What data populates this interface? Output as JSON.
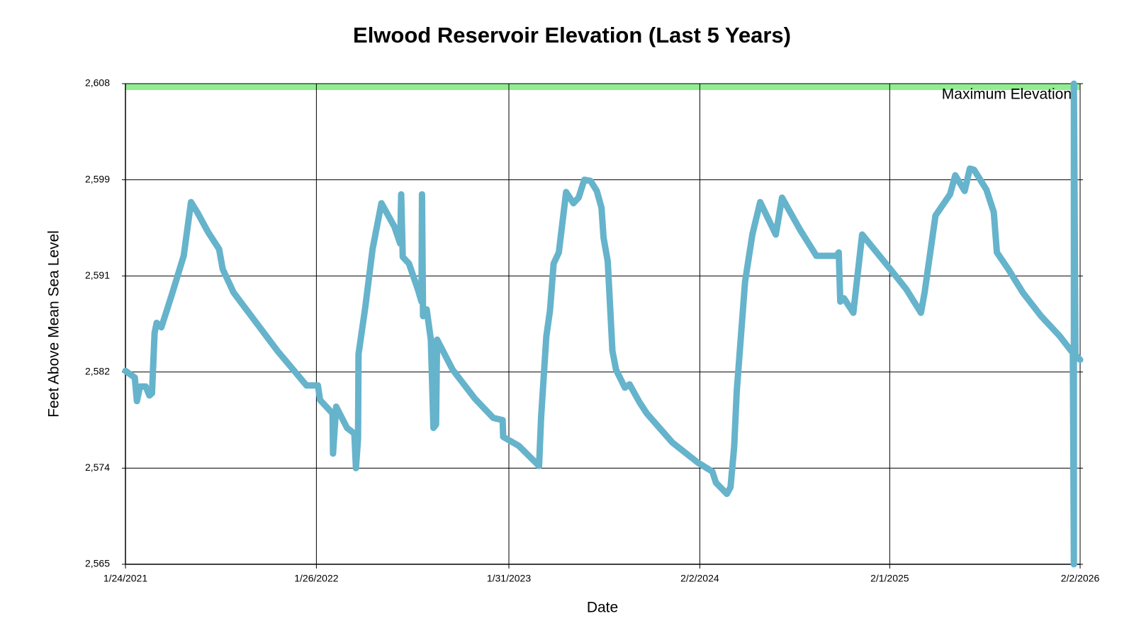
{
  "chart_data": {
    "type": "line",
    "title": "Elwood Reservoir Elevation (Last 5 Years)",
    "x_label": "Date",
    "y_label": "Feet Above Mean Sea Level",
    "x": [
      "2021-01-24",
      "2021-02-11",
      "2021-02-15",
      "2021-02-21",
      "2021-03-04",
      "2021-03-11",
      "2021-03-16",
      "2021-03-21",
      "2021-03-25",
      "2021-04-03",
      "2021-04-23",
      "2021-05-16",
      "2021-05-30",
      "2021-06-11",
      "2021-07-02",
      "2021-07-23",
      "2021-07-30",
      "2021-08-20",
      "2021-09-10",
      "2021-10-01",
      "2021-11-12",
      "2022-01-07",
      "2022-01-29",
      "2022-02-02",
      "2022-02-26",
      "2022-02-27",
      "2022-03-05",
      "2022-03-26",
      "2022-04-09",
      "2022-04-12",
      "2022-04-16",
      "2022-04-17",
      "2022-04-30",
      "2022-05-14",
      "2022-05-31",
      "2022-06-25",
      "2022-07-06",
      "2022-07-08",
      "2022-07-11",
      "2022-07-23",
      "2022-08-09",
      "2022-08-16",
      "2022-08-17",
      "2022-08-19",
      "2022-08-26",
      "2022-09-03",
      "2022-09-08",
      "2022-09-13",
      "2022-09-15",
      "2022-10-15",
      "2022-11-27",
      "2023-01-01",
      "2023-01-19",
      "2023-01-20",
      "2023-02-19",
      "2023-03-30",
      "2023-04-03",
      "2023-04-13",
      "2023-04-20",
      "2023-04-27",
      "2023-05-07",
      "2023-05-21",
      "2023-06-04",
      "2023-06-14",
      "2023-06-25",
      "2023-07-07",
      "2023-07-19",
      "2023-07-28",
      "2023-08-01",
      "2023-08-09",
      "2023-08-18",
      "2023-08-25",
      "2023-09-11",
      "2023-09-20",
      "2023-10-09",
      "2023-10-23",
      "2023-12-11",
      "2024-01-29",
      "2024-02-26",
      "2024-03-04",
      "2024-03-25",
      "2024-04-01",
      "2024-04-08",
      "2024-04-13",
      "2024-04-29",
      "2024-05-13",
      "2024-05-28",
      "2024-06-27",
      "2024-07-09",
      "2024-08-13",
      "2024-09-13",
      "2024-10-22",
      "2024-10-26",
      "2024-10-29",
      "2024-11-05",
      "2024-11-23",
      "2024-12-10",
      "2025-01-07",
      "2025-02-04",
      "2025-03-05",
      "2025-04-02",
      "2025-04-09",
      "2025-04-30",
      "2025-05-28",
      "2025-06-07",
      "2025-06-25",
      "2025-07-05",
      "2025-07-13",
      "2025-08-06",
      "2025-08-20",
      "2025-08-26",
      "2025-09-17",
      "2025-10-15",
      "2025-11-19",
      "2025-12-25",
      "2026-01-19",
      "2026-01-21",
      "2026-01-21",
      "2026-01-24",
      "2026-02-02"
    ],
    "series": [
      {
        "color": "#66b3cc",
        "values": [
          2582.3,
          2581.7,
          2579.6,
          2580.9,
          2580.9,
          2580.1,
          2580.3,
          2585.7,
          2586.6,
          2586.2,
          2589.1,
          2592.6,
          2597.4,
          2596.5,
          2594.7,
          2593.2,
          2591.4,
          2589.3,
          2588.0,
          2586.7,
          2584.1,
          2581.0,
          2581.0,
          2579.7,
          2578.5,
          2574.9,
          2579.1,
          2577.2,
          2576.7,
          2573.6,
          2576.2,
          2583.8,
          2588.0,
          2593.2,
          2597.3,
          2595.2,
          2593.7,
          2598.1,
          2592.5,
          2591.9,
          2589.6,
          2588.5,
          2598.1,
          2587.2,
          2587.8,
          2585.1,
          2577.2,
          2577.5,
          2585.1,
          2582.4,
          2579.8,
          2578.1,
          2577.9,
          2576.4,
          2575.6,
          2573.8,
          2578.2,
          2585.4,
          2587.7,
          2591.9,
          2592.9,
          2598.3,
          2597.3,
          2597.8,
          2599.4,
          2599.3,
          2598.4,
          2596.9,
          2594.2,
          2592.1,
          2584.1,
          2582.4,
          2580.8,
          2581.1,
          2579.5,
          2578.5,
          2575.9,
          2574.1,
          2573.3,
          2572.3,
          2571.3,
          2571.9,
          2575.5,
          2580.5,
          2590.3,
          2594.5,
          2597.4,
          2594.5,
          2597.8,
          2594.9,
          2592.6,
          2592.6,
          2592.9,
          2588.5,
          2588.8,
          2587.5,
          2594.5,
          2592.9,
          2591.3,
          2589.6,
          2587.5,
          2589.3,
          2596.2,
          2598.1,
          2599.8,
          2598.4,
          2600.4,
          2600.3,
          2598.5,
          2596.5,
          2592.9,
          2591.4,
          2589.3,
          2587.2,
          2585.4,
          2583.9,
          2565,
          2608,
          2583.7,
          2583.3
        ]
      }
    ],
    "xlim": [
      "2021-01-24",
      "2026-02-02"
    ],
    "xticks": [
      {
        "value": "2021-01-24",
        "label": "1/24/2021"
      },
      {
        "value": "2022-01-26",
        "label": "1/26/2022"
      },
      {
        "value": "2023-01-31",
        "label": "1/31/2023"
      },
      {
        "value": "2024-02-02",
        "label": "2/2/2024"
      },
      {
        "value": "2025-02-01",
        "label": "2/1/2025"
      },
      {
        "value": "2026-02-02",
        "label": "2/2/2026"
      }
    ],
    "ylim": [
      2565,
      2608
    ],
    "yticks": [
      {
        "value": 2565,
        "label": "2,565"
      },
      {
        "value": 2573.6,
        "label": "2,574"
      },
      {
        "value": 2582.2,
        "label": "2,582"
      },
      {
        "value": 2590.8,
        "label": "2,591"
      },
      {
        "value": 2599.4,
        "label": "2,599"
      },
      {
        "value": 2608,
        "label": "2,608"
      }
    ],
    "grid": true,
    "reference_line": {
      "label": "Maximum Elevation",
      "value": 2608,
      "color": "#90ee90",
      "label_color": "#1a7a1a"
    }
  }
}
